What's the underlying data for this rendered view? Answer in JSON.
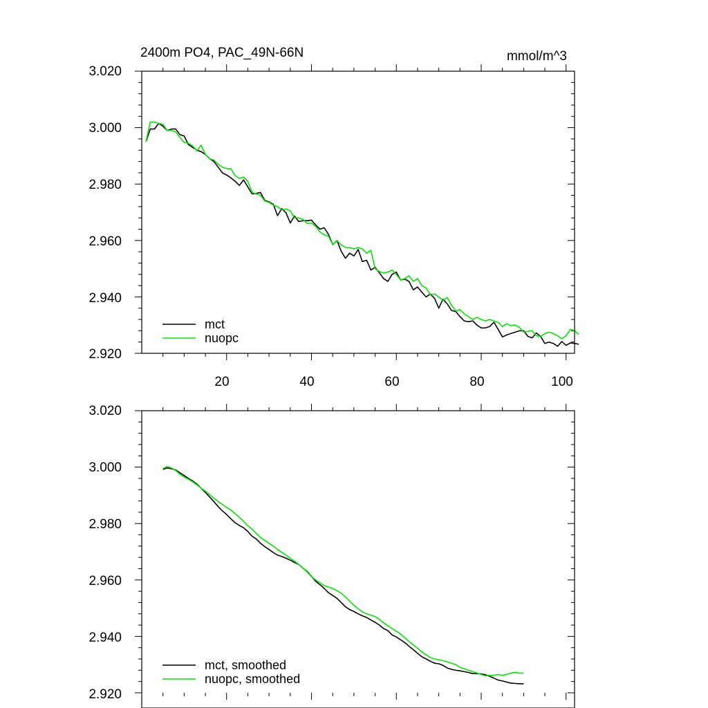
{
  "colors": {
    "mct": "#000000",
    "nuopc": "#00e600"
  },
  "chart_data": [
    {
      "type": "line",
      "title_left": "2400m PO4, PAC_49N-66N",
      "title_right": "mmol/m^3",
      "xlim": [
        0,
        102
      ],
      "ylim": [
        2.92,
        3.02
      ],
      "x_ticks": [
        20,
        40,
        60,
        80,
        100
      ],
      "x_tick_labels": [
        "20",
        "40",
        "60",
        "80",
        "100"
      ],
      "y_ticks": [
        2.92,
        2.94,
        2.96,
        2.98,
        3.0,
        3.02
      ],
      "y_tick_labels": [
        "2.920",
        "2.940",
        "2.960",
        "2.980",
        "3.000",
        "3.020"
      ],
      "legend": [
        "mct",
        "nuopc"
      ],
      "series": [
        {
          "name": "mct",
          "color": "#000000",
          "x_start": 1,
          "values": [
            2.995,
            2.9995,
            2.9995,
            3.0015,
            3.0005,
            2.999,
            2.9995,
            2.9995,
            2.9975,
            2.997,
            2.994,
            2.993,
            2.992,
            2.9915,
            2.9905,
            2.989,
            2.988,
            2.986,
            2.984,
            2.9832,
            2.9822,
            2.981,
            2.9795,
            2.9815,
            2.979,
            2.9765,
            2.9767,
            2.977,
            2.9742,
            2.9737,
            2.9728,
            2.9688,
            2.9713,
            2.9698,
            2.9662,
            2.9687,
            2.9667,
            2.967,
            2.967,
            2.9672,
            2.9655,
            2.964,
            2.9645,
            2.9622,
            2.9585,
            2.96,
            2.9562,
            2.9537,
            2.9555,
            2.9545,
            2.9568,
            2.9525,
            2.953,
            2.9495,
            2.9505,
            2.9485,
            2.9465,
            2.9455,
            2.948,
            2.9488,
            2.946,
            2.9463,
            2.9455,
            2.9425,
            2.9435,
            2.9417,
            2.94,
            2.941,
            2.9395,
            2.936,
            2.9392,
            2.9375,
            2.9352,
            2.9348,
            2.933,
            2.9315,
            2.9312,
            2.9315,
            2.93,
            2.929,
            2.929,
            2.9295,
            2.931,
            2.9285,
            2.9258,
            2.9265,
            2.927,
            2.9275,
            2.928,
            2.928,
            2.926,
            2.9255,
            2.9272,
            2.926,
            2.9235,
            2.924,
            2.9235,
            2.9225,
            2.9242,
            2.9228,
            2.9237,
            2.9235,
            2.9232
          ]
        },
        {
          "name": "nuopc",
          "color": "#00e600",
          "x_start": 1,
          "values": [
            2.995,
            3.002,
            3.002,
            3.0015,
            3.0012,
            2.999,
            2.999,
            2.9985,
            2.9965,
            2.9948,
            2.9945,
            2.9935,
            2.9918,
            2.9938,
            2.9905,
            2.989,
            2.9885,
            2.987,
            2.986,
            2.9855,
            2.9855,
            2.983,
            2.982,
            2.9825,
            2.981,
            2.977,
            2.9765,
            2.976,
            2.974,
            2.9735,
            2.9725,
            2.972,
            2.9708,
            2.9712,
            2.9705,
            2.968,
            2.968,
            2.9675,
            2.966,
            2.9662,
            2.965,
            2.963,
            2.962,
            2.9615,
            2.9585,
            2.96,
            2.9585,
            2.9575,
            2.9575,
            2.957,
            2.9575,
            2.957,
            2.9555,
            2.9565,
            2.95,
            2.949,
            2.9485,
            2.9488,
            2.9495,
            2.948,
            2.946,
            2.9465,
            2.9475,
            2.9455,
            2.9465,
            2.944,
            2.9432,
            2.9408,
            2.941,
            2.94,
            2.9388,
            2.9398,
            2.937,
            2.935,
            2.9355,
            2.934,
            2.933,
            2.932,
            2.9328,
            2.932,
            2.9315,
            2.932,
            2.9315,
            2.931,
            2.9295,
            2.9305,
            2.9298,
            2.93,
            2.9292,
            2.9275,
            2.9278,
            2.928,
            2.9262,
            2.926,
            2.927,
            2.9275,
            2.927,
            2.9262,
            2.9252,
            2.9262,
            2.9285,
            2.928,
            2.9267
          ]
        }
      ]
    },
    {
      "type": "line",
      "xlim": [
        0,
        102
      ],
      "ylim": [
        2.92,
        3.02
      ],
      "x_ticks": [
        20,
        40,
        60,
        80,
        100
      ],
      "y_ticks": [
        2.92,
        2.94,
        2.96,
        2.98,
        3.0,
        3.02
      ],
      "y_tick_labels": [
        "2.920",
        "2.940",
        "2.960",
        "2.980",
        "3.000",
        "3.020"
      ],
      "legend": [
        "mct, smoothed",
        "nuopc, smoothed"
      ],
      "series": [
        {
          "name": "mct, smoothed",
          "color": "#000000",
          "x_start": 5,
          "values": [
            2.9992,
            2.9997,
            2.9994,
            2.999,
            2.998,
            2.997,
            2.996,
            2.9951,
            2.994,
            2.9925,
            2.991,
            2.9894,
            2.9878,
            2.986,
            2.9845,
            2.9832,
            2.9817,
            2.9803,
            2.9793,
            2.9785,
            2.9772,
            2.9755,
            2.9745,
            2.973,
            2.9718,
            2.9708,
            2.9697,
            2.9688,
            2.9683,
            2.9677,
            2.967,
            2.9662,
            2.9655,
            2.9642,
            2.963,
            2.9613,
            2.9595,
            2.9583,
            2.957,
            2.9555,
            2.9545,
            2.9535,
            2.952,
            2.9505,
            2.9495,
            2.9488,
            2.948,
            2.9473,
            2.9467,
            2.9458,
            2.945,
            2.944,
            2.9428,
            2.942,
            2.9405,
            2.9398,
            2.9388,
            2.9378,
            2.9365,
            2.9353,
            2.934,
            2.9328,
            2.932,
            2.9312,
            2.9305,
            2.9303,
            2.9297,
            2.9288,
            2.9283,
            2.928,
            2.9278,
            2.9275,
            2.9272,
            2.9268,
            2.9268,
            2.9267,
            2.9264,
            2.9258,
            2.9252,
            2.9245,
            2.9242,
            2.9238,
            2.9234,
            2.9233,
            2.9232,
            2.9232
          ]
        },
        {
          "name": "nuopc, smoothed",
          "color": "#00e600",
          "x_start": 5,
          "values": [
            2.9995,
            3.0002,
            2.9997,
            2.9988,
            2.9975,
            2.9965,
            2.9957,
            2.9948,
            2.9937,
            2.9925,
            2.9915,
            2.9902,
            2.989,
            2.9878,
            2.9868,
            2.9857,
            2.9848,
            2.9835,
            2.9822,
            2.9808,
            2.9792,
            2.978,
            2.9765,
            2.975,
            2.974,
            2.973,
            2.972,
            2.9708,
            2.9698,
            2.9688,
            2.9677,
            2.9667,
            2.9655,
            2.9642,
            2.9628,
            2.9612,
            2.96,
            2.959,
            2.958,
            2.9575,
            2.957,
            2.9562,
            2.9553,
            2.954,
            2.9525,
            2.951,
            2.9498,
            2.9487,
            2.948,
            2.9475,
            2.947,
            2.946,
            2.9448,
            2.9438,
            2.9428,
            2.9418,
            2.9408,
            2.9395,
            2.9382,
            2.937,
            2.9358,
            2.9345,
            2.9335,
            2.9325,
            2.932,
            2.9317,
            2.9314,
            2.931,
            2.9305,
            2.93,
            2.929,
            2.9285,
            2.928,
            2.9275,
            2.927,
            2.9265,
            2.926,
            2.9262,
            2.9262,
            2.9265,
            2.9262,
            2.9265,
            2.927,
            2.9272,
            2.927,
            2.927
          ]
        }
      ]
    }
  ]
}
